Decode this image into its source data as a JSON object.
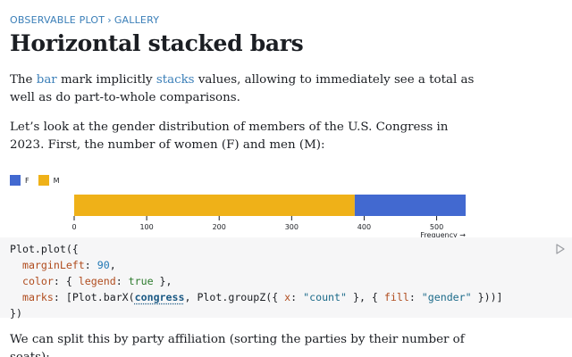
{
  "breadcrumb": {
    "root": "OBSERVABLE PLOT",
    "separator": "›",
    "current": "GALLERY"
  },
  "page_title": "Horizontal stacked bars",
  "intro": {
    "part1": "The ",
    "link_bar": "bar",
    "part2": " mark implicitly ",
    "link_stacks": "stacks",
    "part3": " values, allowing to immediately see a total as well as do part-to-whole comparisons."
  },
  "paragraph2": "Let’s look at the gender distribution of members of the U.S. Congress in 2023. First, the number of women (F) and men (M):",
  "legend": [
    {
      "label": "F",
      "color": "#4269d0"
    },
    {
      "label": "M",
      "color": "#efb118"
    }
  ],
  "chart_data": {
    "type": "bar",
    "orientation": "horizontal-stacked",
    "series": [
      {
        "name": "M",
        "values": [
          387
        ],
        "color": "#efb118"
      },
      {
        "name": "F",
        "values": [
          153
        ],
        "color": "#4269d0"
      }
    ],
    "xlim": [
      0,
      540
    ],
    "x_ticks": [
      0,
      100,
      200,
      300,
      400,
      500
    ],
    "x_tick_labels": [
      "0",
      "100",
      "200",
      "300",
      "400",
      "500"
    ],
    "xlabel": "Frequency →",
    "legend_position": "top-left"
  },
  "code": {
    "line1_a": "Plot.plot({",
    "line2_prop": "marginLeft",
    "line2_val": "90",
    "line3_prop": "color",
    "line3_inner_prop": "legend",
    "line3_val": "true",
    "line4_prop": "marks",
    "line4_fn1": "Plot.barX(",
    "line4_var": "congress",
    "line4_fn2": ", Plot.groupZ({ ",
    "line4_x_prop": "x",
    "line4_x_val": "\"count\"",
    "line4_mid": " }, { ",
    "line4_fill_prop": "fill",
    "line4_fill_val": "\"gender\"",
    "line4_end": " }))]",
    "line5": "})"
  },
  "paragraph3": "We can split this by party affiliation (sorting the parties by their number of seats):"
}
